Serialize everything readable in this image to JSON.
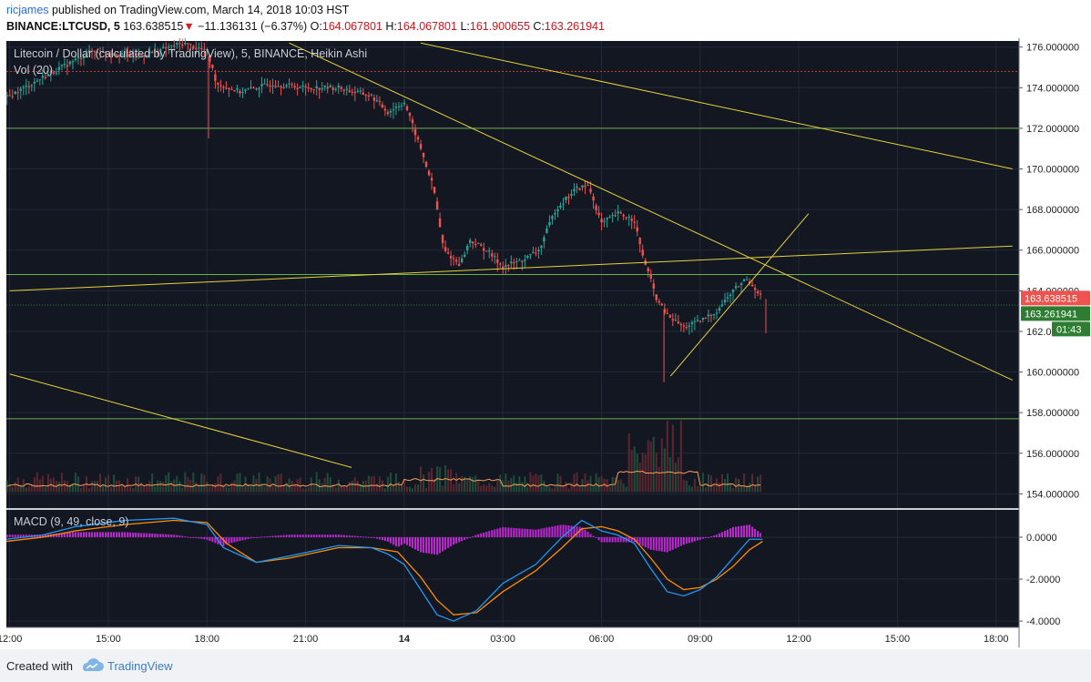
{
  "header": {
    "author": "ricjames",
    "published_text": "published on TradingView.com, March 14, 2018 10:03 HST",
    "symbol": "BINANCE:LTCUSD, 5",
    "last_price": "163.638515",
    "change_arrow": "▼",
    "change": "−11.136131 (−6.37%)",
    "o_label": "O:",
    "o_value": "164.067801",
    "h_label": "H:",
    "h_value": "164.067801",
    "l_label": "L:",
    "l_value": "161.900655",
    "c_label": "C:",
    "c_value": "163.261941"
  },
  "footer": {
    "created_with": "Created with",
    "brand": "TradingView"
  },
  "colors": {
    "background": "#131722",
    "grid": "#232838",
    "up": "#26a69a",
    "down": "#ef5350",
    "trendline": "#e6d23a",
    "support": "#6ab04c",
    "resistance_dotted": "#c0392b",
    "macd": "#2196f3",
    "signal": "#ff8c00",
    "histogram": "#c026d3",
    "vol_ma": "#f5a05a",
    "price_badge": "#ef5350",
    "close_badge": "#2e7d32"
  },
  "chart_data": [
    {
      "type": "candlestick",
      "title": "Litecoin / Dollar (calculated by TradingView), 5, BINANCE, Heikin Ashi",
      "indicator_label": "Vol (20)",
      "chart_style": "Heikin Ashi",
      "interval_minutes": 5,
      "ylim": [
        153.3,
        176.3
      ],
      "y_ticks": [
        "176.000000",
        "174.000000",
        "172.000000",
        "170.000000",
        "168.000000",
        "166.000000",
        "164.000000",
        "162.000000",
        "160.000000",
        "158.000000",
        "156.000000",
        "154.000000"
      ],
      "y_tick_values": [
        176,
        174,
        172,
        170,
        168,
        166,
        164,
        162,
        160,
        158,
        156,
        154
      ],
      "x_ticks": [
        "12:00",
        "15:00",
        "18:00",
        "21:00",
        "14",
        "03:00",
        "06:00",
        "09:00",
        "12:00",
        "15:00",
        "18:00"
      ],
      "x_tick_hours": [
        12,
        15,
        18,
        21,
        24,
        27,
        30,
        33,
        36,
        39,
        42
      ],
      "x_range_hours": [
        11.9,
        42.7
      ],
      "price_path": [
        [
          11.9,
          173.5
        ],
        [
          13.0,
          174.5
        ],
        [
          14.5,
          175.8
        ],
        [
          16.0,
          175.6
        ],
        [
          17.3,
          176.2
        ],
        [
          18.0,
          175.8
        ],
        [
          18.3,
          174.2
        ],
        [
          19.0,
          173.8
        ],
        [
          20.0,
          174.2
        ],
        [
          21.0,
          174.0
        ],
        [
          22.0,
          174.0
        ],
        [
          23.0,
          173.6
        ],
        [
          23.5,
          172.8
        ],
        [
          24.0,
          173.3
        ],
        [
          24.5,
          171.0
        ],
        [
          24.9,
          169.0
        ],
        [
          25.2,
          166.0
        ],
        [
          25.7,
          165.3
        ],
        [
          26.0,
          166.5
        ],
        [
          26.5,
          166.0
        ],
        [
          27.0,
          165.2
        ],
        [
          27.6,
          165.5
        ],
        [
          28.1,
          166.0
        ],
        [
          28.6,
          168.0
        ],
        [
          29.2,
          169.0
        ],
        [
          29.6,
          169.2
        ],
        [
          30.0,
          167.3
        ],
        [
          30.5,
          167.8
        ],
        [
          31.0,
          167.5
        ],
        [
          31.2,
          166.0
        ],
        [
          31.7,
          163.5
        ],
        [
          32.0,
          162.8
        ],
        [
          32.5,
          162.2
        ],
        [
          33.0,
          162.5
        ],
        [
          33.5,
          163.0
        ],
        [
          34.0,
          164.0
        ],
        [
          34.4,
          164.6
        ],
        [
          34.7,
          164.1
        ],
        [
          34.9,
          163.6
        ]
      ],
      "last_price_badge": "163.638515",
      "close_badge": "163.261941",
      "countdown_badge": "01:43",
      "horizontal_lines": [
        {
          "price": 174.8,
          "style": "dotted",
          "color": "#c0392b"
        },
        {
          "price": 172.0,
          "style": "solid",
          "color": "#6ab04c"
        },
        {
          "price": 164.8,
          "style": "solid",
          "color": "#6ab04c"
        },
        {
          "price": 157.7,
          "style": "solid",
          "color": "#6ab04c"
        },
        {
          "price": 163.3,
          "style": "dashed",
          "color": "#2e7d32"
        }
      ],
      "trendlines": [
        {
          "from": [
            12.0,
            164.0
          ],
          "to": [
            42.5,
            166.2
          ]
        },
        {
          "from": [
            20.5,
            176.2
          ],
          "to": [
            42.5,
            159.6
          ]
        },
        {
          "from": [
            24.5,
            176.2
          ],
          "to": [
            42.5,
            170.0
          ]
        },
        {
          "from": [
            12.0,
            159.9
          ],
          "to": [
            22.4,
            155.3
          ]
        },
        {
          "from": [
            32.1,
            159.8
          ],
          "to": [
            36.3,
            167.8
          ]
        }
      ]
    },
    {
      "type": "line",
      "title": "MACD (9, 49, close, 9)",
      "ylim": [
        -4.3,
        1.3
      ],
      "y_ticks": [
        "0.0000",
        "-2.0000",
        "-4.0000"
      ],
      "y_tick_values": [
        0,
        -2,
        -4
      ],
      "series": [],
      "macd_path": [
        [
          11.9,
          -0.1
        ],
        [
          13.0,
          0.1
        ],
        [
          14.0,
          0.5
        ],
        [
          15.5,
          0.8
        ],
        [
          17.0,
          0.9
        ],
        [
          18.0,
          0.6
        ],
        [
          18.5,
          -0.5
        ],
        [
          19.5,
          -1.2
        ],
        [
          20.5,
          -0.9
        ],
        [
          22.0,
          -0.4
        ],
        [
          23.0,
          -0.5
        ],
        [
          23.5,
          -0.8
        ],
        [
          24.0,
          -1.3
        ],
        [
          24.5,
          -2.5
        ],
        [
          25.0,
          -3.7
        ],
        [
          25.5,
          -4.0
        ],
        [
          26.2,
          -3.5
        ],
        [
          27.0,
          -2.2
        ],
        [
          28.0,
          -1.3
        ],
        [
          28.8,
          0.0
        ],
        [
          29.4,
          0.8
        ],
        [
          30.0,
          0.3
        ],
        [
          30.5,
          0.1
        ],
        [
          31.0,
          -0.3
        ],
        [
          31.5,
          -1.5
        ],
        [
          32.0,
          -2.6
        ],
        [
          32.5,
          -2.8
        ],
        [
          33.0,
          -2.5
        ],
        [
          33.5,
          -1.9
        ],
        [
          34.0,
          -1.0
        ],
        [
          34.5,
          -0.1
        ],
        [
          34.9,
          -0.1
        ]
      ],
      "signal_path": [
        [
          11.9,
          -0.2
        ],
        [
          13.0,
          0.0
        ],
        [
          14.0,
          0.3
        ],
        [
          15.5,
          0.6
        ],
        [
          17.0,
          0.8
        ],
        [
          18.0,
          0.7
        ],
        [
          18.6,
          -0.3
        ],
        [
          19.5,
          -1.2
        ],
        [
          20.5,
          -1.0
        ],
        [
          22.0,
          -0.5
        ],
        [
          23.0,
          -0.5
        ],
        [
          23.8,
          -0.7
        ],
        [
          24.5,
          -1.9
        ],
        [
          25.0,
          -3.0
        ],
        [
          25.5,
          -3.7
        ],
        [
          26.2,
          -3.6
        ],
        [
          27.0,
          -2.6
        ],
        [
          28.0,
          -1.6
        ],
        [
          28.8,
          -0.5
        ],
        [
          29.4,
          0.4
        ],
        [
          30.0,
          0.5
        ],
        [
          30.5,
          0.3
        ],
        [
          31.0,
          -0.1
        ],
        [
          31.5,
          -1.0
        ],
        [
          32.0,
          -2.0
        ],
        [
          32.5,
          -2.5
        ],
        [
          33.0,
          -2.4
        ],
        [
          33.5,
          -2.0
        ],
        [
          34.0,
          -1.4
        ],
        [
          34.5,
          -0.6
        ],
        [
          34.9,
          -0.2
        ]
      ]
    }
  ]
}
